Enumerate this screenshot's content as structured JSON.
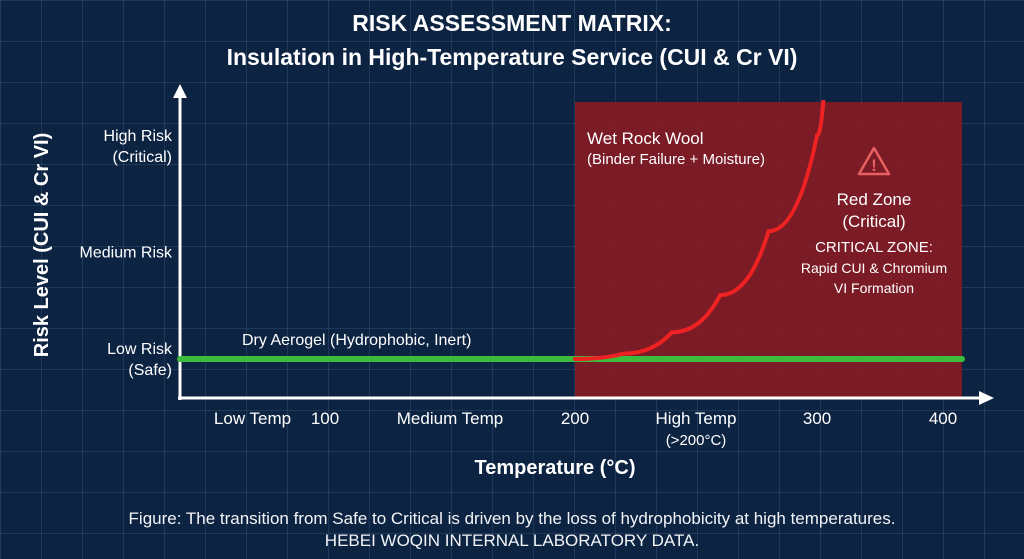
{
  "chart_data": {
    "type": "line",
    "title": "RISK ASSESSMENT MATRIX:",
    "subtitle": "Insulation in High-Temperature Service (CUI & Cr VI)",
    "xlabel": "Temperature (°C)",
    "ylabel": "Risk Level (CUI & Cr VI)",
    "x_ticks": [
      {
        "value": 50,
        "label": "Low Temp",
        "sub": ""
      },
      {
        "value": 100,
        "label": "100",
        "sub": ""
      },
      {
        "value": 150,
        "label": "Medium Temp",
        "sub": ""
      },
      {
        "value": 200,
        "label": "200",
        "sub": ""
      },
      {
        "value": 250,
        "label": "High Temp",
        "sub": "(>200°C)"
      },
      {
        "value": 300,
        "label": "300",
        "sub": ""
      },
      {
        "value": 400,
        "label": "400",
        "sub": ""
      }
    ],
    "y_ticks": [
      {
        "value": 1,
        "label": "Low Risk",
        "sub": "(Safe)"
      },
      {
        "value": 2,
        "label": "Medium Risk",
        "sub": ""
      },
      {
        "value": 3,
        "label": "High Risk",
        "sub": "(Critical)"
      }
    ],
    "xlim": [
      0,
      415
    ],
    "ylim": [
      0.6,
      3.5
    ],
    "grid": true,
    "series": [
      {
        "name": "Dry Aerogel (Hydrophobic, Inert)",
        "color": "#3dbb3d",
        "x": [
          0,
          100,
          200,
          300,
          415
        ],
        "y": [
          1,
          1,
          1,
          1,
          1
        ]
      },
      {
        "name": "Wet Rock Wool",
        "note": "(Binder Failure + Moisture)",
        "color": "#ee2222",
        "x": [
          200,
          220,
          240,
          260,
          280,
          300,
          305
        ],
        "y": [
          1,
          1.05,
          1.25,
          1.6,
          2.2,
          3.1,
          3.42
        ]
      }
    ],
    "zone": {
      "x_from": 200,
      "x_to": 415,
      "color": "#8b1a22",
      "label": "Red Zone",
      "label2": "(Critical)",
      "heading": "CRITICAL ZONE:",
      "text1": "Rapid CUI & Chromium",
      "text2": "VI Formation"
    }
  },
  "caption": {
    "line1": "Figure: The transition from Safe to Critical is driven by the loss of hydrophobicity at high temperatures.",
    "line2": "HEBEI WOQIN INTERNAL LABORATORY DATA."
  }
}
